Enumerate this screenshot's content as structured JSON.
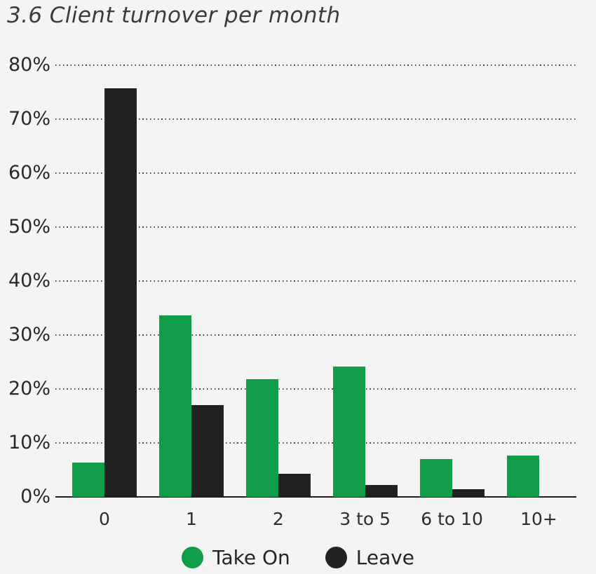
{
  "header": {
    "title": "3.6 Client turnover per month"
  },
  "colors": {
    "take_on": "#119c48",
    "leave": "#212320",
    "background": "#f4f4f5",
    "text": "#28292b",
    "grid": "#2a2a2a",
    "axis": "#1d1d1d"
  },
  "chart_data": {
    "type": "bar",
    "title": "3.6 Client turnover per month",
    "categories": [
      "0",
      "1",
      "2",
      "3 to 5",
      "6 to 10",
      "10+"
    ],
    "series": [
      {
        "name": "Take On",
        "color": "#119c48",
        "values": [
          6.3,
          33.6,
          21.8,
          24.2,
          7,
          7.7
        ]
      },
      {
        "name": "Leave",
        "color": "#212320",
        "values": [
          75.7,
          17,
          4.3,
          2.2,
          1.4,
          0
        ]
      }
    ],
    "xlabel": "",
    "ylabel": "",
    "y_ticks": [
      "0%",
      "10%",
      "20%",
      "30%",
      "40%",
      "50%",
      "60%",
      "70%",
      "80%"
    ],
    "ylim": [
      0,
      80
    ],
    "grid": "horizontal-dotted",
    "legend_position": "bottom"
  },
  "legend": {
    "items": [
      {
        "label": "Take On"
      },
      {
        "label": "Leave"
      }
    ]
  }
}
